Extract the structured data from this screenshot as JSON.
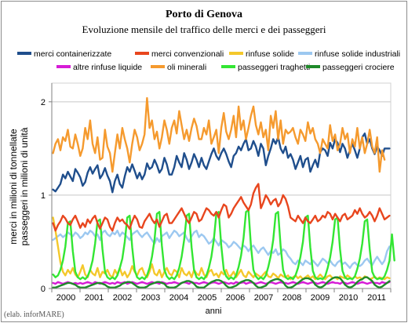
{
  "chart_data": {
    "type": "line",
    "title": "Porto di Genova",
    "subtitle": "Evoluzione mensile del traffico delle merci e dei passeggeri",
    "xlabel": "anni",
    "ylabel_line1": "merci in milioni di tonnellate",
    "ylabel_line2": "passeggeri in milioni di unità",
    "credit": "(elab. inforMARE)",
    "x_start": "2000-01",
    "x_end": "2011-05",
    "frequency": "monthly",
    "x_ticks": [
      "2000",
      "2001",
      "2002",
      "2003",
      "2004",
      "2005",
      "2006",
      "2007",
      "2008",
      "2009",
      "2010",
      "2011"
    ],
    "ylim": [
      0,
      2.2
    ],
    "y_ticks": [
      "0",
      "1",
      "2"
    ],
    "grid": "horizontal",
    "legend_position": "top",
    "series": [
      {
        "name": "merci containerizzate",
        "color": "#1f4e8c",
        "values": [
          1.06,
          1.04,
          1.08,
          1.12,
          1.22,
          1.18,
          1.25,
          1.2,
          1.15,
          1.28,
          1.24,
          1.19,
          1.1,
          1.14,
          1.24,
          1.3,
          1.23,
          1.28,
          1.32,
          1.18,
          1.22,
          1.29,
          1.21,
          1.15,
          1.03,
          1.15,
          1.22,
          1.12,
          1.08,
          1.2,
          1.3,
          1.25,
          1.33,
          1.26,
          1.18,
          1.24,
          1.17,
          1.22,
          1.34,
          1.28,
          1.3,
          1.38,
          1.32,
          1.24,
          1.28,
          1.4,
          1.33,
          1.22,
          1.22,
          1.3,
          1.42,
          1.35,
          1.3,
          1.45,
          1.38,
          1.28,
          1.35,
          1.44,
          1.38,
          1.3,
          1.4,
          1.32,
          1.28,
          1.36,
          1.44,
          1.5,
          1.42,
          1.38,
          1.45,
          1.5,
          1.44,
          1.36,
          1.3,
          1.42,
          1.45,
          1.52,
          1.48,
          1.55,
          1.6,
          1.48,
          1.5,
          1.58,
          1.52,
          1.42,
          1.55,
          1.5,
          1.32,
          1.42,
          1.5,
          1.6,
          1.55,
          1.62,
          1.5,
          1.45,
          1.52,
          1.4,
          1.44,
          1.38,
          1.28,
          1.35,
          1.42,
          1.3,
          1.38,
          1.4,
          1.25,
          1.32,
          1.38,
          1.3,
          1.46,
          1.5,
          1.48,
          1.42,
          1.56,
          1.5,
          1.6,
          1.56,
          1.46,
          1.55,
          1.5,
          1.4,
          1.48,
          1.55,
          1.48,
          1.4,
          1.5,
          1.62,
          1.66,
          1.55,
          1.6,
          1.5,
          1.44,
          1.52,
          1.48,
          1.42,
          1.5,
          1.5,
          1.5
        ]
      },
      {
        "name": "merci convenzionali",
        "color": "#e8461e",
        "values": [
          0.7,
          0.62,
          0.68,
          0.72,
          0.78,
          0.75,
          0.7,
          0.68,
          0.74,
          0.78,
          0.72,
          0.65,
          0.7,
          0.66,
          0.74,
          0.7,
          0.75,
          0.78,
          0.7,
          0.64,
          0.7,
          0.76,
          0.74,
          0.66,
          0.62,
          0.7,
          0.76,
          0.72,
          0.74,
          0.7,
          0.68,
          0.64,
          0.72,
          0.78,
          0.74,
          0.66,
          0.65,
          0.72,
          0.76,
          0.8,
          0.74,
          0.7,
          0.74,
          0.66,
          0.72,
          0.78,
          0.8,
          0.7,
          0.7,
          0.74,
          0.78,
          0.82,
          0.86,
          0.8,
          0.74,
          0.7,
          0.76,
          0.82,
          0.8,
          0.72,
          0.74,
          0.8,
          0.86,
          0.84,
          0.8,
          0.78,
          0.82,
          0.76,
          0.84,
          0.9,
          0.88,
          0.76,
          0.8,
          0.86,
          0.9,
          0.94,
          0.98,
          0.92,
          0.88,
          0.84,
          0.9,
          1.02,
          1.08,
          1.12,
          0.86,
          0.92,
          1.0,
          0.96,
          0.9,
          0.94,
          0.96,
          0.88,
          0.92,
          1.0,
          0.96,
          0.88,
          0.76,
          0.74,
          0.72,
          0.78,
          0.74,
          0.7,
          0.76,
          0.72,
          0.7,
          0.74,
          0.78,
          0.72,
          0.74,
          0.78,
          0.76,
          0.82,
          0.8,
          0.74,
          0.8,
          0.76,
          0.72,
          0.78,
          0.8,
          0.74,
          0.76,
          0.78,
          0.84,
          0.8,
          0.86,
          0.8,
          0.76,
          0.78,
          0.82,
          0.78,
          0.72,
          0.78,
          0.86,
          0.8,
          0.74,
          0.76,
          0.78
        ]
      },
      {
        "name": "rinfuse solide",
        "color": "#f4c82b",
        "values": [
          0.76,
          0.62,
          0.45,
          0.28,
          0.18,
          0.14,
          0.2,
          0.16,
          0.22,
          0.15,
          0.12,
          0.18,
          0.25,
          0.15,
          0.12,
          0.2,
          0.16,
          0.14,
          0.22,
          0.12,
          0.18,
          0.16,
          0.2,
          0.14,
          0.12,
          0.2,
          0.15,
          0.22,
          0.14,
          0.18,
          0.12,
          0.16,
          0.24,
          0.18,
          0.14,
          0.2,
          0.22,
          0.15,
          0.12,
          0.18,
          0.26,
          0.16,
          0.14,
          0.2,
          0.12,
          0.18,
          0.22,
          0.16,
          0.14,
          0.2,
          0.18,
          0.12,
          0.22,
          0.16,
          0.14,
          0.18,
          0.12,
          0.2,
          0.16,
          0.14,
          0.22,
          0.15,
          0.12,
          0.18,
          0.2,
          0.14,
          0.16,
          0.12,
          0.18,
          0.15,
          0.2,
          0.13,
          0.14,
          0.18,
          0.12,
          0.16,
          0.2,
          0.14,
          0.12,
          0.18,
          0.15,
          0.12,
          0.16,
          0.14,
          0.12,
          0.15,
          0.18,
          0.13,
          0.12,
          0.16,
          0.14,
          0.11,
          0.15,
          0.13,
          0.12,
          0.14,
          0.1,
          0.12,
          0.14,
          0.11,
          0.13,
          0.1,
          0.12,
          0.14,
          0.11,
          0.13,
          0.1,
          0.12,
          0.15,
          0.12,
          0.1,
          0.13,
          0.14,
          0.11,
          0.12,
          0.1,
          0.13,
          0.12,
          0.11,
          0.14,
          0.12,
          0.1,
          0.13,
          0.11,
          0.12,
          0.1,
          0.13,
          0.12,
          0.1,
          0.11,
          0.13,
          0.1,
          0.12,
          0.11,
          0.1,
          0.12,
          0.11
        ]
      },
      {
        "name": "rinfuse solide industriali",
        "color": "#9cc8f0",
        "values": [
          0.52,
          0.54,
          0.56,
          0.58,
          0.55,
          0.57,
          0.6,
          0.58,
          0.56,
          0.6,
          0.58,
          0.54,
          0.56,
          0.6,
          0.58,
          0.62,
          0.6,
          0.56,
          0.58,
          0.52,
          0.6,
          0.62,
          0.58,
          0.56,
          0.6,
          0.58,
          0.62,
          0.56,
          0.6,
          0.58,
          0.55,
          0.52,
          0.58,
          0.6,
          0.62,
          0.58,
          0.55,
          0.58,
          0.6,
          0.56,
          0.52,
          0.48,
          0.54,
          0.5,
          0.56,
          0.58,
          0.6,
          0.54,
          0.58,
          0.62,
          0.6,
          0.56,
          0.58,
          0.6,
          0.54,
          0.5,
          0.56,
          0.6,
          0.62,
          0.55,
          0.58,
          0.56,
          0.52,
          0.48,
          0.5,
          0.54,
          0.5,
          0.46,
          0.52,
          0.5,
          0.48,
          0.44,
          0.46,
          0.5,
          0.48,
          0.45,
          0.42,
          0.46,
          0.44,
          0.4,
          0.44,
          0.46,
          0.42,
          0.38,
          0.42,
          0.44,
          0.4,
          0.36,
          0.4,
          0.38,
          0.42,
          0.36,
          0.38,
          0.42,
          0.4,
          0.35,
          0.32,
          0.28,
          0.26,
          0.3,
          0.28,
          0.25,
          0.3,
          0.28,
          0.26,
          0.3,
          0.27,
          0.24,
          0.28,
          0.32,
          0.3,
          0.27,
          0.3,
          0.26,
          0.24,
          0.28,
          0.3,
          0.26,
          0.28,
          0.25,
          0.22,
          0.26,
          0.28,
          0.25,
          0.24,
          0.26,
          0.3,
          0.32,
          0.28,
          0.25,
          0.3,
          0.34,
          0.3,
          0.26,
          0.3,
          0.4,
          0.45
        ]
      },
      {
        "name": "altre rinfuse liquide",
        "color": "#d61cd6",
        "values": [
          0.06,
          0.05,
          0.07,
          0.06,
          0.05,
          0.06,
          0.07,
          0.06,
          0.05,
          0.06,
          0.05,
          0.06,
          0.05,
          0.06,
          0.07,
          0.06,
          0.05,
          0.07,
          0.06,
          0.05,
          0.06,
          0.07,
          0.06,
          0.05,
          0.06,
          0.05,
          0.07,
          0.06,
          0.06,
          0.07,
          0.05,
          0.06,
          0.07,
          0.06,
          0.05,
          0.06,
          0.07,
          0.06,
          0.05,
          0.06,
          0.07,
          0.06,
          0.06,
          0.05,
          0.07,
          0.06,
          0.05,
          0.06,
          0.06,
          0.07,
          0.06,
          0.05,
          0.06,
          0.07,
          0.06,
          0.05,
          0.07,
          0.06,
          0.06,
          0.05,
          0.06,
          0.07,
          0.06,
          0.05,
          0.06,
          0.07,
          0.06,
          0.05,
          0.06,
          0.07,
          0.06,
          0.05,
          0.06,
          0.05,
          0.07,
          0.06,
          0.06,
          0.07,
          0.05,
          0.06,
          0.07,
          0.06,
          0.05,
          0.06,
          0.07,
          0.06,
          0.05,
          0.06,
          0.07,
          0.06,
          0.05,
          0.06,
          0.07,
          0.06,
          0.06,
          0.05,
          0.06,
          0.07,
          0.06,
          0.05,
          0.06,
          0.07,
          0.06,
          0.05,
          0.06,
          0.07,
          0.06,
          0.05,
          0.06,
          0.07,
          0.06,
          0.05,
          0.06,
          0.07,
          0.06,
          0.06,
          0.05,
          0.07,
          0.06,
          0.05,
          0.06,
          0.07,
          0.06,
          0.05,
          0.06,
          0.07,
          0.06,
          0.05,
          0.06,
          0.07,
          0.06,
          0.06,
          0.05,
          0.07,
          0.06,
          0.06,
          0.07
        ]
      },
      {
        "name": "oli minerali",
        "color": "#f59a2e",
        "values": [
          1.45,
          1.55,
          1.6,
          1.48,
          1.62,
          1.58,
          1.7,
          1.52,
          1.5,
          1.65,
          1.55,
          1.42,
          1.5,
          1.72,
          1.6,
          1.8,
          1.55,
          1.45,
          1.62,
          1.38,
          1.4,
          1.7,
          1.52,
          1.45,
          1.25,
          1.45,
          1.65,
          1.5,
          1.72,
          1.6,
          1.5,
          1.35,
          1.55,
          1.7,
          1.62,
          1.48,
          1.55,
          1.65,
          2.04,
          1.72,
          1.8,
          1.6,
          1.68,
          1.5,
          1.62,
          1.8,
          1.7,
          1.55,
          1.72,
          1.8,
          1.66,
          1.9,
          1.75,
          1.6,
          1.7,
          1.58,
          1.72,
          1.82,
          1.74,
          1.6,
          1.6,
          1.72,
          1.65,
          1.8,
          1.55,
          1.62,
          1.7,
          1.45,
          1.72,
          1.88,
          1.68,
          1.6,
          1.7,
          1.85,
          1.62,
          1.95,
          1.7,
          1.8,
          1.6,
          1.72,
          1.85,
          1.95,
          1.75,
          1.65,
          1.78,
          1.62,
          1.7,
          1.48,
          1.85,
          1.72,
          1.9,
          1.6,
          1.8,
          1.55,
          1.7,
          1.66,
          1.68,
          1.72,
          1.62,
          1.55,
          1.7,
          1.65,
          1.58,
          1.78,
          1.66,
          1.72,
          1.6,
          1.55,
          1.45,
          1.6,
          1.55,
          1.5,
          1.75,
          1.58,
          1.65,
          1.48,
          1.55,
          1.72,
          1.6,
          1.66,
          1.45,
          1.6,
          1.52,
          1.72,
          1.5,
          1.62,
          1.45,
          1.55,
          1.7,
          1.52,
          1.45,
          1.62,
          1.25,
          1.48,
          1.38
        ]
      },
      {
        "name": "passeggeri traghetti",
        "color": "#33e633",
        "values": [
          0.15,
          0.12,
          0.14,
          0.2,
          0.3,
          0.45,
          0.7,
          0.72,
          0.4,
          0.18,
          0.12,
          0.1,
          0.12,
          0.1,
          0.13,
          0.2,
          0.3,
          0.48,
          0.72,
          0.74,
          0.42,
          0.18,
          0.12,
          0.1,
          0.12,
          0.1,
          0.14,
          0.22,
          0.32,
          0.5,
          0.76,
          0.78,
          0.44,
          0.2,
          0.12,
          0.1,
          0.12,
          0.1,
          0.14,
          0.22,
          0.34,
          0.52,
          0.8,
          0.82,
          0.46,
          0.2,
          0.13,
          0.1,
          0.12,
          0.1,
          0.14,
          0.22,
          0.34,
          0.52,
          0.78,
          0.8,
          0.44,
          0.2,
          0.12,
          0.1,
          0.12,
          0.1,
          0.14,
          0.22,
          0.34,
          0.52,
          0.8,
          0.82,
          0.46,
          0.2,
          0.13,
          0.1,
          0.12,
          0.1,
          0.14,
          0.23,
          0.35,
          0.54,
          0.82,
          0.84,
          0.46,
          0.2,
          0.13,
          0.1,
          0.12,
          0.1,
          0.14,
          0.23,
          0.35,
          0.52,
          0.8,
          0.82,
          0.45,
          0.2,
          0.12,
          0.1,
          0.12,
          0.1,
          0.14,
          0.22,
          0.34,
          0.5,
          0.76,
          0.78,
          0.44,
          0.19,
          0.12,
          0.1,
          0.11,
          0.1,
          0.13,
          0.22,
          0.33,
          0.5,
          0.74,
          0.76,
          0.42,
          0.19,
          0.12,
          0.1,
          0.11,
          0.1,
          0.13,
          0.21,
          0.32,
          0.48,
          0.72,
          0.74,
          0.42,
          0.18,
          0.12,
          0.1,
          0.11,
          0.1,
          0.13,
          0.2,
          0.3,
          0.58,
          0.3
        ]
      },
      {
        "name": "passeggeri crociere",
        "color": "#1f8a2a",
        "values": [
          0.01,
          0.01,
          0.02,
          0.03,
          0.04,
          0.05,
          0.06,
          0.06,
          0.05,
          0.04,
          0.02,
          0.01,
          0.01,
          0.01,
          0.02,
          0.03,
          0.04,
          0.05,
          0.06,
          0.06,
          0.05,
          0.04,
          0.02,
          0.01,
          0.01,
          0.01,
          0.02,
          0.03,
          0.05,
          0.06,
          0.07,
          0.07,
          0.06,
          0.04,
          0.02,
          0.01,
          0.01,
          0.01,
          0.02,
          0.04,
          0.05,
          0.06,
          0.07,
          0.07,
          0.06,
          0.05,
          0.02,
          0.01,
          0.01,
          0.01,
          0.02,
          0.04,
          0.06,
          0.07,
          0.08,
          0.08,
          0.07,
          0.05,
          0.02,
          0.01,
          0.01,
          0.01,
          0.03,
          0.05,
          0.07,
          0.08,
          0.09,
          0.09,
          0.08,
          0.06,
          0.03,
          0.01,
          0.01,
          0.02,
          0.03,
          0.05,
          0.07,
          0.08,
          0.09,
          0.09,
          0.08,
          0.06,
          0.03,
          0.01,
          0.01,
          0.02,
          0.03,
          0.06,
          0.08,
          0.09,
          0.1,
          0.1,
          0.09,
          0.07,
          0.03,
          0.01,
          0.01,
          0.02,
          0.04,
          0.06,
          0.08,
          0.1,
          0.11,
          0.11,
          0.1,
          0.08,
          0.04,
          0.02,
          0.01,
          0.02,
          0.04,
          0.07,
          0.09,
          0.11,
          0.12,
          0.12,
          0.11,
          0.08,
          0.04,
          0.02,
          0.01,
          0.02,
          0.04,
          0.07,
          0.09,
          0.1,
          0.12,
          0.12,
          0.1,
          0.08,
          0.04,
          0.02,
          0.01,
          0.02,
          0.04,
          0.06,
          0.08
        ]
      }
    ]
  }
}
